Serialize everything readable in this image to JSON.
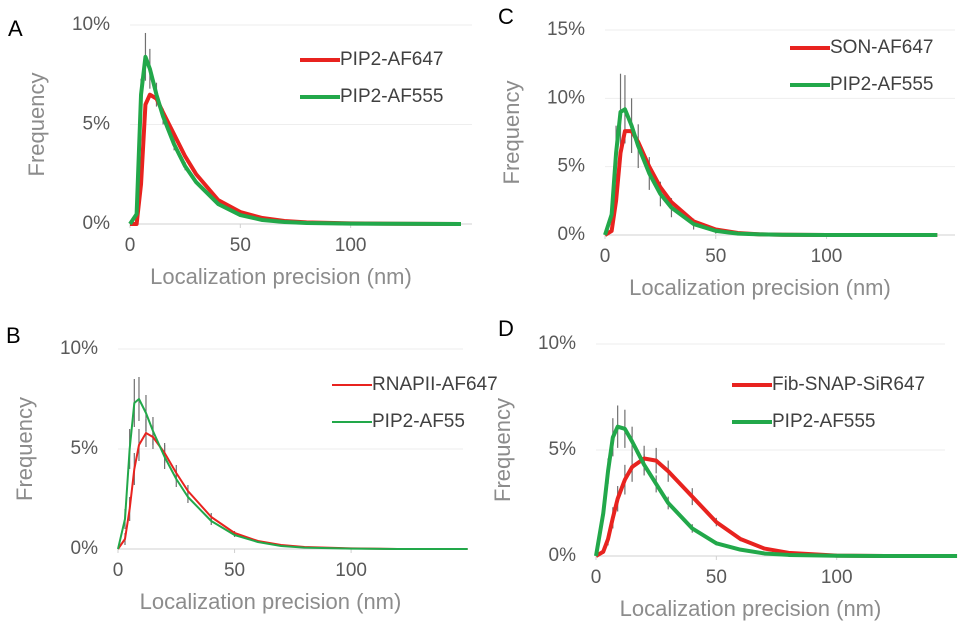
{
  "chart_data": [
    {
      "type": "line",
      "panel": "A",
      "x_label": "Localization precision (nm)",
      "y_label": "Frequency",
      "x": [
        0,
        3,
        5,
        7,
        9,
        12,
        15,
        20,
        25,
        30,
        40,
        50,
        60,
        70,
        80,
        100,
        120,
        150
      ],
      "series": [
        {
          "name": "PIP2-AF647",
          "color": "#e8231f",
          "width": 4,
          "values": [
            0,
            0,
            2,
            6,
            6.5,
            6.3,
            5.6,
            4.5,
            3.4,
            2.5,
            1.2,
            0.6,
            0.3,
            0.15,
            0.08,
            0.03,
            0.01,
            0
          ]
        },
        {
          "name": "PIP2-AF555",
          "color": "#22a84a",
          "width": 4,
          "values": [
            0,
            0.5,
            6.5,
            8.4,
            7.8,
            6.5,
            5.4,
            4,
            2.9,
            2.1,
            1,
            0.45,
            0.2,
            0.1,
            0.05,
            0.02,
            0.01,
            0
          ],
          "errors": [
            0,
            0.3,
            0.8,
            1.2,
            1,
            0.6,
            0.4,
            0.3,
            0.2,
            0.1,
            0,
            0,
            0,
            0,
            0,
            0,
            0,
            0
          ]
        }
      ],
      "xlim": [
        0,
        155
      ],
      "xticks": [
        0,
        50,
        100
      ],
      "ylim": [
        0,
        10
      ],
      "yticks": [
        {
          "value": 0,
          "label": "0%"
        },
        {
          "value": 5,
          "label": "5%"
        },
        {
          "value": 10,
          "label": "10%"
        }
      ],
      "grid": true,
      "legend": "upper right"
    },
    {
      "type": "line",
      "panel": "B",
      "x_label": "Localization precision (nm)",
      "y_label": "Frequency",
      "x": [
        0,
        3,
        5,
        7,
        9,
        12,
        15,
        20,
        25,
        30,
        40,
        50,
        60,
        70,
        80,
        100,
        120,
        150
      ],
      "series": [
        {
          "name": "RNAPII-AF647",
          "color": "#e8231f",
          "width": 2,
          "values": [
            0,
            0.5,
            2,
            4,
            5.2,
            5.8,
            5.6,
            4.8,
            3.8,
            2.9,
            1.6,
            0.8,
            0.4,
            0.2,
            0.1,
            0.03,
            0,
            0
          ],
          "errors": [
            0,
            0.3,
            0.6,
            0.8,
            0.8,
            0.7,
            0.6,
            0.5,
            0.4,
            0.3,
            0.2,
            0.1,
            0,
            0,
            0,
            0,
            0,
            0
          ]
        },
        {
          "name": "PIP2-AF55",
          "color": "#22a84a",
          "width": 2,
          "values": [
            0,
            1.5,
            5,
            7.3,
            7.5,
            6.8,
            5.9,
            4.6,
            3.5,
            2.6,
            1.4,
            0.7,
            0.35,
            0.15,
            0.07,
            0.02,
            0,
            0
          ],
          "errors": [
            0,
            0.5,
            1,
            1.2,
            1.1,
            0.9,
            0.7,
            0.6,
            0.4,
            0.3,
            0.2,
            0.1,
            0,
            0,
            0,
            0,
            0,
            0
          ]
        }
      ],
      "xlim": [
        0,
        148
      ],
      "xticks": [
        0,
        50,
        100
      ],
      "ylim": [
        0,
        10
      ],
      "yticks": [
        {
          "value": 0,
          "label": "0%"
        },
        {
          "value": 5,
          "label": "5%"
        },
        {
          "value": 10,
          "label": "10%"
        }
      ],
      "grid": true,
      "legend": "upper right"
    },
    {
      "type": "line",
      "panel": "C",
      "x_label": "Localization precision (nm)",
      "y_label": "Frequency",
      "x": [
        0,
        3,
        5,
        7,
        9,
        12,
        15,
        20,
        25,
        30,
        40,
        50,
        60,
        70,
        80,
        100,
        120,
        150
      ],
      "series": [
        {
          "name": "SON-AF647",
          "color": "#e8231f",
          "width": 4,
          "values": [
            0,
            0.3,
            2.5,
            6,
            7.6,
            7.6,
            6.8,
            5,
            3.5,
            2.4,
            1,
            0.4,
            0.15,
            0.05,
            0.02,
            0,
            0,
            0
          ]
        },
        {
          "name": "PIP2-AF555",
          "color": "#22a84a",
          "width": 4,
          "values": [
            0,
            1.5,
            6,
            9,
            9.2,
            8,
            6.5,
            4.5,
            3,
            2,
            0.8,
            0.3,
            0.1,
            0.05,
            0.02,
            0,
            0,
            0
          ],
          "errors": [
            0,
            1,
            2,
            2.8,
            2.5,
            2,
            1.6,
            1.2,
            0.9,
            0.7,
            0.4,
            0.2,
            0.1,
            0,
            0,
            0,
            0,
            0
          ]
        }
      ],
      "xlim": [
        0,
        158
      ],
      "xticks": [
        0,
        50,
        100
      ],
      "ylim": [
        0,
        15
      ],
      "yticks": [
        {
          "value": 0,
          "label": "0%"
        },
        {
          "value": 5,
          "label": "5%"
        },
        {
          "value": 10,
          "label": "10%"
        },
        {
          "value": 15,
          "label": "15%"
        }
      ],
      "grid": true,
      "legend": "upper right"
    },
    {
      "type": "line",
      "panel": "D",
      "x_label": "Localization precision (nm)",
      "y_label": "Frequency",
      "x": [
        0,
        3,
        5,
        7,
        9,
        12,
        15,
        20,
        25,
        30,
        40,
        50,
        60,
        70,
        80,
        100,
        120,
        150
      ],
      "series": [
        {
          "name": "Fib-SNAP-SiR647",
          "color": "#e8231f",
          "width": 4,
          "values": [
            0,
            0.2,
            0.8,
            1.8,
            2.7,
            3.6,
            4.2,
            4.6,
            4.5,
            4,
            2.8,
            1.6,
            0.8,
            0.35,
            0.15,
            0.02,
            0,
            0
          ],
          "errors": [
            0,
            0.1,
            0.3,
            0.5,
            0.6,
            0.7,
            0.7,
            0.6,
            0.6,
            0.5,
            0.4,
            0.2,
            0.1,
            0,
            0,
            0,
            0,
            0
          ]
        },
        {
          "name": "PIP2-AF555",
          "color": "#22a84a",
          "width": 4,
          "values": [
            0,
            2,
            4,
            5.6,
            6.1,
            6,
            5.4,
            4.3,
            3.4,
            2.5,
            1.3,
            0.6,
            0.3,
            0.12,
            0.05,
            0.01,
            0,
            0
          ],
          "errors": [
            0,
            0.3,
            0.6,
            0.9,
            1,
            0.9,
            0.7,
            0.5,
            0.4,
            0.3,
            0.2,
            0.1,
            0,
            0,
            0,
            0,
            0,
            0
          ]
        }
      ],
      "xlim": [
        0,
        145
      ],
      "xticks": [
        0,
        50,
        100
      ],
      "ylim": [
        0,
        10
      ],
      "yticks": [
        {
          "value": 0,
          "label": "0%"
        },
        {
          "value": 5,
          "label": "5%"
        },
        {
          "value": 10,
          "label": "10%"
        }
      ],
      "grid": true,
      "legend": "upper right"
    }
  ]
}
